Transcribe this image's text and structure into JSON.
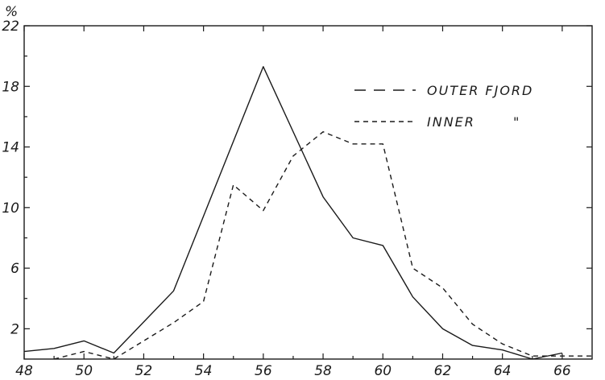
{
  "chart_data": {
    "type": "line",
    "title": "",
    "xlabel": "",
    "ylabel": "%",
    "xlim": [
      48,
      67
    ],
    "ylim": [
      0,
      22
    ],
    "x_ticks": [
      48,
      50,
      52,
      54,
      56,
      58,
      60,
      62,
      64,
      66
    ],
    "x_tick_labels": [
      "48",
      "50",
      "52",
      "54",
      "56",
      "58",
      "60",
      "62",
      "64",
      "66"
    ],
    "y_ticks": [
      2,
      6,
      10,
      14,
      18,
      22
    ],
    "y_tick_labels": [
      "2",
      "6",
      "10",
      "14",
      "18",
      "22"
    ],
    "grid": false,
    "legend_placement": "top-right",
    "series": [
      {
        "name": "OUTER FJORD",
        "style": "solid",
        "x": [
          48,
          49,
          50,
          51,
          53,
          56,
          58,
          59,
          60,
          61,
          62,
          63,
          64,
          65,
          66
        ],
        "y": [
          0.5,
          0.7,
          1.2,
          0.4,
          4.5,
          19.3,
          10.7,
          8.0,
          7.5,
          4.1,
          2.0,
          0.9,
          0.6,
          0.0,
          0.4
        ]
      },
      {
        "name": "INNER \"",
        "style": "dashed",
        "x": [
          49,
          50,
          51,
          53,
          54,
          55,
          56,
          57,
          58,
          59,
          60,
          61,
          62,
          63,
          64,
          65,
          66,
          67
        ],
        "y": [
          0.0,
          0.5,
          0.0,
          2.4,
          3.8,
          11.5,
          9.8,
          13.4,
          15.0,
          14.2,
          14.2,
          6.0,
          4.7,
          2.3,
          1.0,
          0.2,
          0.2,
          0.2
        ]
      }
    ]
  }
}
